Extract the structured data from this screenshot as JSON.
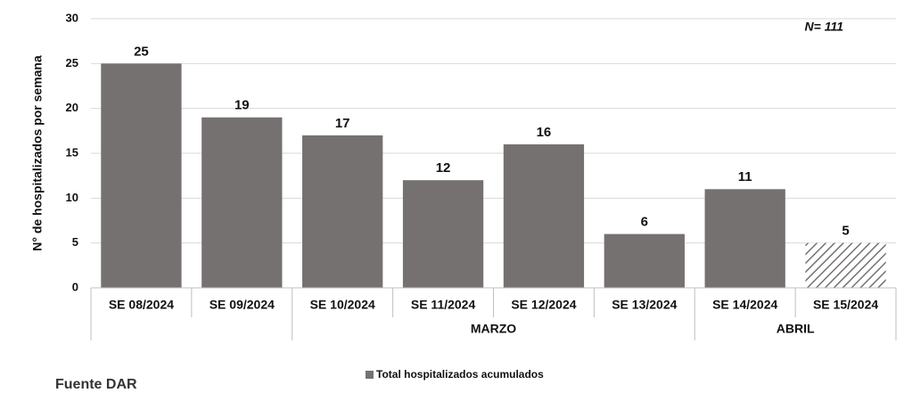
{
  "chart_data": {
    "type": "bar",
    "y_axis_label": "N° de hospitalizados por semana",
    "categories": [
      "SE 08/2024",
      "SE 09/2024",
      "SE 10/2024",
      "SE 11/2024",
      "SE 12/2024",
      "SE 13/2024",
      "SE 14/2024",
      "SE 15/2024"
    ],
    "values": [
      25,
      19,
      17,
      12,
      16,
      6,
      11,
      5
    ],
    "hatched": [
      false,
      false,
      false,
      false,
      false,
      false,
      false,
      true
    ],
    "color": "#767171",
    "ylim": [
      0,
      30
    ],
    "yticks": [
      0,
      5,
      10,
      15,
      20,
      25,
      30
    ],
    "grid": true,
    "groups": [
      {
        "label": null,
        "count": 2
      },
      {
        "label": "MARZO",
        "count": 4
      },
      {
        "label": "ABRIL",
        "count": 2
      }
    ],
    "annotation": "N= 111",
    "legend": "Total hospitalizados acumulados",
    "source": "Fuente DAR"
  }
}
